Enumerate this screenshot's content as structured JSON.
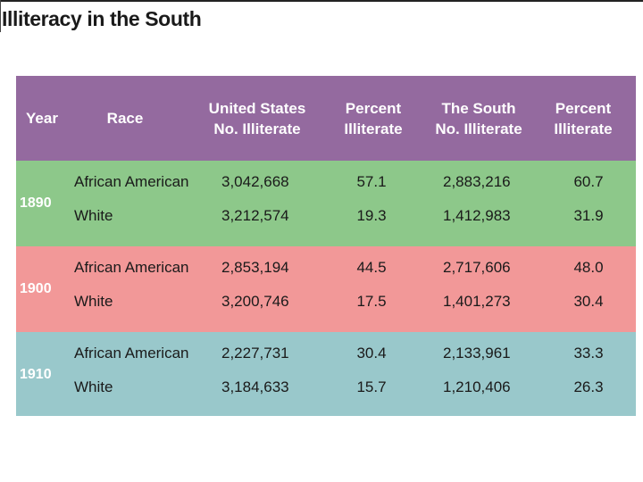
{
  "title": "Illiteracy in the South",
  "header": {
    "year": "Year",
    "race": "Race",
    "us_illiterate": "United States\nNo. Illiterate",
    "us_percent": "Percent\nIlliterate",
    "south_illiterate": "The South\nNo. Illiterate",
    "south_percent": "Percent\nIlliterate"
  },
  "colors": {
    "header": "#946a9f",
    "band_1890": "#8dc88a",
    "band_1900": "#f29898",
    "band_1910": "#99c8cb"
  },
  "groups": [
    {
      "year": "1890",
      "rows": [
        {
          "race": "African American",
          "us": "3,042,668",
          "us_pct": "57.1",
          "south": "2,883,216",
          "south_pct": "60.7"
        },
        {
          "race": "White",
          "us": "3,212,574",
          "us_pct": "19.3",
          "south": "1,412,983",
          "south_pct": "31.9"
        }
      ]
    },
    {
      "year": "1900",
      "rows": [
        {
          "race": "African American",
          "us": "2,853,194",
          "us_pct": "44.5",
          "south": "2,717,606",
          "south_pct": "48.0"
        },
        {
          "race": "White",
          "us": "3,200,746",
          "us_pct": "17.5",
          "south": "1,401,273",
          "south_pct": "30.4"
        }
      ]
    },
    {
      "year": "1910",
      "rows": [
        {
          "race": "African American",
          "us": "2,227,731",
          "us_pct": "30.4",
          "south": "2,133,961",
          "south_pct": "33.3"
        },
        {
          "race": "White",
          "us": "3,184,633",
          "us_pct": "15.7",
          "south": "1,210,406",
          "south_pct": "26.3"
        }
      ]
    }
  ]
}
